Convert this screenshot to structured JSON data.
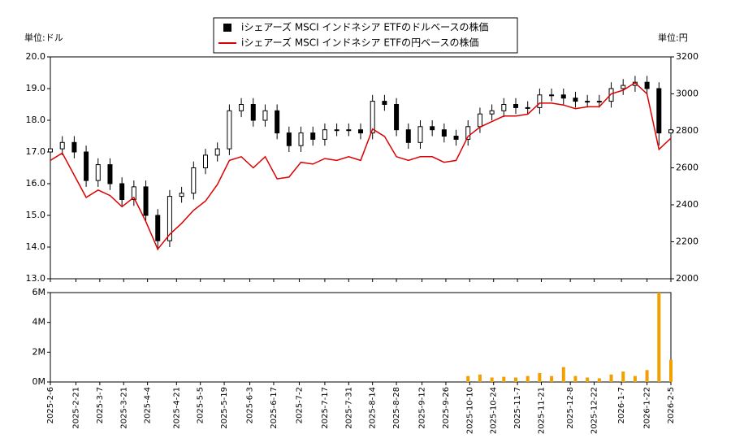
{
  "chart_data": {
    "type": "candlestick",
    "unit_left": "単位:ドル",
    "unit_right": "単位:円",
    "x": [
      "2025-2-6",
      "2025-2-13",
      "2025-2-20",
      "2025-2-27",
      "2025-3-6",
      "2025-3-13",
      "2025-3-20",
      "2025-3-27",
      "2025-4-3",
      "2025-4-10",
      "2025-4-17",
      "2025-4-24",
      "2025-5-1",
      "2025-5-8",
      "2025-5-15",
      "2025-5-22",
      "2025-5-29",
      "2025-6-5",
      "2025-6-12",
      "2025-6-19",
      "2025-6-26",
      "2025-7-3",
      "2025-7-10",
      "2025-7-17",
      "2025-7-24",
      "2025-7-31",
      "2025-8-7",
      "2025-8-14",
      "2025-8-21",
      "2025-8-28",
      "2025-9-4",
      "2025-9-11",
      "2025-9-18",
      "2025-9-25",
      "2025-10-2",
      "2025-10-9",
      "2025-10-16",
      "2025-10-23",
      "2025-10-30",
      "2025-11-6",
      "2025-11-13",
      "2025-11-20",
      "2025-11-27",
      "2025-12-4",
      "2025-12-11",
      "2025-12-18",
      "2025-12-25",
      "2026-1-1",
      "2026-1-8",
      "2026-1-15",
      "2026-1-22",
      "2026-1-29",
      "2026-2-5"
    ],
    "xlim": [
      "2025-2-6",
      "2026-2-5"
    ],
    "xticks": [
      "2025-2-6",
      "2025-2-21",
      "2025-3-7",
      "2025-3-21",
      "2025-4-4",
      "2025-4-21",
      "2025-5-5",
      "2025-5-19",
      "2025-6-3",
      "2025-6-17",
      "2025-7-2",
      "2025-7-17",
      "2025-7-31",
      "2025-8-14",
      "2025-8-28",
      "2025-9-12",
      "2025-9-26",
      "2025-10-10",
      "2025-10-24",
      "2025-11-7",
      "2025-11-21",
      "2025-12-8",
      "2025-12-22",
      "2026-1-7",
      "2026-1-22",
      "2026-2-5"
    ],
    "ylim": [
      13,
      20
    ],
    "yticks": [
      {
        "value": 13,
        "label": "13.0"
      },
      {
        "value": 14,
        "label": "14.0"
      },
      {
        "value": 15,
        "label": "15.0"
      },
      {
        "value": 16,
        "label": "16.0"
      },
      {
        "value": 17,
        "label": "17.0"
      },
      {
        "value": 18,
        "label": "18.0"
      },
      {
        "value": 19,
        "label": "19.0"
      },
      {
        "value": 20,
        "label": "20.0"
      }
    ],
    "y2lim": [
      2000,
      3200
    ],
    "y2ticks": [
      2000,
      2200,
      2400,
      2600,
      2800,
      3000,
      3200
    ],
    "series": [
      {
        "name": "iシェアーズ MSCI インドネシア ETFのドルベースの株価",
        "color": "#000000",
        "open": [
          17.0,
          17.1,
          17.3,
          17.0,
          16.1,
          16.6,
          16.0,
          15.5,
          15.9,
          15.0,
          14.2,
          15.6,
          15.7,
          16.5,
          16.9,
          17.1,
          18.3,
          18.5,
          18.0,
          18.3,
          17.6,
          17.2,
          17.6,
          17.4,
          17.7,
          17.7,
          17.7,
          17.6,
          18.6,
          18.5,
          17.7,
          17.3,
          17.8,
          17.7,
          17.5,
          17.4,
          17.8,
          18.2,
          18.3,
          18.5,
          18.4,
          18.4,
          18.8,
          18.8,
          18.7,
          18.6,
          18.6,
          18.6,
          19.0,
          19.1,
          19.2,
          19.0,
          17.6
        ],
        "high": [
          17.3,
          17.5,
          17.5,
          17.2,
          16.8,
          16.8,
          16.2,
          16.1,
          16.1,
          15.2,
          15.8,
          15.9,
          16.7,
          17.1,
          17.3,
          18.5,
          18.7,
          18.7,
          18.5,
          18.5,
          17.8,
          17.8,
          17.8,
          17.9,
          17.9,
          17.9,
          17.9,
          18.8,
          18.8,
          18.7,
          17.9,
          18.0,
          18.0,
          17.9,
          17.7,
          18.0,
          18.4,
          18.5,
          18.7,
          18.7,
          18.6,
          19.0,
          19.0,
          19.0,
          18.9,
          18.8,
          18.8,
          19.2,
          19.3,
          19.4,
          19.4,
          19.2,
          17.9
        ],
        "low": [
          16.8,
          16.9,
          16.8,
          15.9,
          15.9,
          15.8,
          15.3,
          15.3,
          14.8,
          13.9,
          14.0,
          15.4,
          15.5,
          16.3,
          16.7,
          16.9,
          18.1,
          17.8,
          17.8,
          17.4,
          17.0,
          17.0,
          17.2,
          17.2,
          17.5,
          17.5,
          17.4,
          17.4,
          18.3,
          17.5,
          17.1,
          17.1,
          17.5,
          17.3,
          17.2,
          17.2,
          17.6,
          18.0,
          18.1,
          18.2,
          18.2,
          18.2,
          18.6,
          18.5,
          18.4,
          18.4,
          18.4,
          18.4,
          18.8,
          18.9,
          18.8,
          17.2,
          17.4
        ],
        "close": [
          17.1,
          17.3,
          17.0,
          16.1,
          16.6,
          16.0,
          15.5,
          15.9,
          15.0,
          14.2,
          15.6,
          15.7,
          16.5,
          16.9,
          17.1,
          18.3,
          18.5,
          18.0,
          18.3,
          17.6,
          17.2,
          17.6,
          17.4,
          17.7,
          17.7,
          17.7,
          17.6,
          18.6,
          18.5,
          17.7,
          17.3,
          17.8,
          17.7,
          17.5,
          17.4,
          17.8,
          18.2,
          18.3,
          18.5,
          18.4,
          18.4,
          18.8,
          18.8,
          18.7,
          18.6,
          18.6,
          18.6,
          19.0,
          19.1,
          19.2,
          19.0,
          17.6,
          17.7
        ]
      },
      {
        "name": "iシェアーズ MSCI インドネシア ETFの円ベースの株価",
        "color": "#dd0000",
        "axis": "y2",
        "values": [
          2640,
          2680,
          2560,
          2440,
          2480,
          2450,
          2390,
          2440,
          2310,
          2160,
          2240,
          2300,
          2370,
          2420,
          2510,
          2640,
          2660,
          2600,
          2660,
          2540,
          2550,
          2630,
          2620,
          2650,
          2640,
          2660,
          2640,
          2810,
          2770,
          2660,
          2640,
          2660,
          2660,
          2630,
          2640,
          2770,
          2820,
          2850,
          2880,
          2880,
          2890,
          2950,
          2950,
          2940,
          2920,
          2930,
          2930,
          3000,
          3020,
          3060,
          3000,
          2700,
          2760
        ]
      }
    ],
    "volume": {
      "color": "#f0a000",
      "values": [
        0,
        0,
        0,
        0,
        0,
        0,
        0,
        0,
        0,
        0,
        0,
        0,
        0,
        0,
        0,
        0,
        0,
        0,
        0,
        0,
        0,
        0,
        0,
        0,
        0,
        0,
        0,
        0,
        0,
        0,
        0,
        0,
        0,
        0,
        0,
        400000,
        500000,
        300000,
        350000,
        300000,
        400000,
        600000,
        400000,
        1000000,
        400000,
        300000,
        250000,
        500000,
        700000,
        400000,
        800000,
        6000000,
        1500000
      ],
      "ylim": [
        0,
        6000000
      ],
      "yticks": [
        {
          "value": 0,
          "label": "0M"
        },
        {
          "value": 2000000,
          "label": "2M"
        },
        {
          "value": 4000000,
          "label": "4M"
        },
        {
          "value": 6000000,
          "label": "6M"
        }
      ]
    }
  }
}
